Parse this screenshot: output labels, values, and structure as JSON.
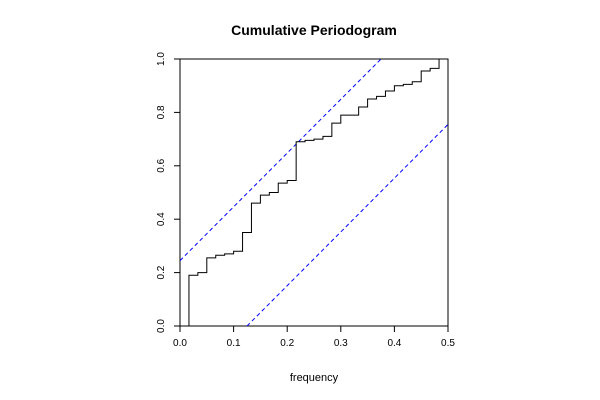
{
  "chart_data": {
    "type": "line",
    "title": "Cumulative Periodogram",
    "xlabel": "frequency",
    "ylabel": "",
    "xlim": [
      0,
      0.5
    ],
    "ylim": [
      0,
      1
    ],
    "xticks": [
      "0.0",
      "0.1",
      "0.2",
      "0.3",
      "0.4",
      "0.5"
    ],
    "xtick_values": [
      0,
      0.1,
      0.2,
      0.3,
      0.4,
      0.5
    ],
    "yticks": [
      "0.0",
      "0.2",
      "0.4",
      "0.6",
      "0.8",
      "1.0"
    ],
    "ytick_values": [
      0,
      0.2,
      0.4,
      0.6,
      0.8,
      1.0
    ],
    "grid": false,
    "colors": {
      "step": "#000000",
      "bounds": "#0000ff"
    },
    "series": [
      {
        "kind": "step",
        "x": [
          0.0167,
          0.0333,
          0.05,
          0.0667,
          0.0833,
          0.1,
          0.1167,
          0.1333,
          0.15,
          0.1667,
          0.1833,
          0.2,
          0.2167,
          0.2333,
          0.25,
          0.2667,
          0.2833,
          0.3,
          0.3167,
          0.3333,
          0.35,
          0.3667,
          0.3833,
          0.4,
          0.4167,
          0.4333,
          0.45,
          0.4667,
          0.4833,
          0.5
        ],
        "y": [
          0.19,
          0.2,
          0.255,
          0.265,
          0.27,
          0.28,
          0.35,
          0.46,
          0.49,
          0.5,
          0.535,
          0.545,
          0.69,
          0.695,
          0.7,
          0.71,
          0.76,
          0.79,
          0.79,
          0.82,
          0.85,
          0.86,
          0.88,
          0.9,
          0.905,
          0.915,
          0.955,
          0.965,
          1.0,
          1.0
        ]
      },
      {
        "kind": "upper-bound",
        "x": [
          0,
          0.375
        ],
        "y": [
          0.245,
          1.0
        ]
      },
      {
        "kind": "lower-bound",
        "x": [
          0.125,
          0.5
        ],
        "y": [
          0,
          0.755
        ]
      }
    ]
  }
}
